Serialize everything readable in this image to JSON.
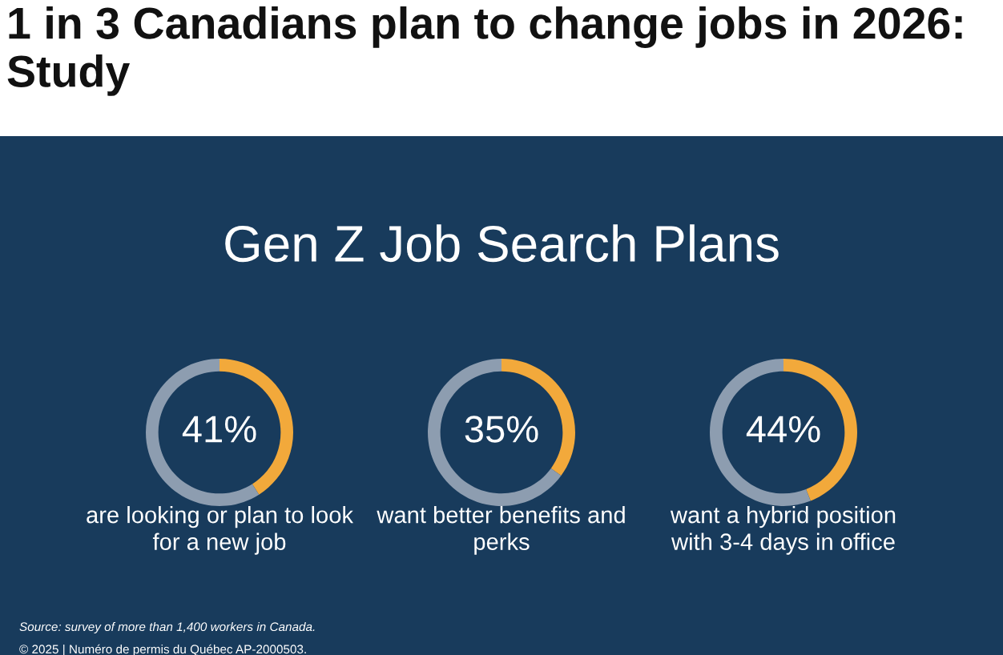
{
  "chart_data": [
    {
      "type": "donut",
      "title": "1 in 3 Canadians plan to change jobs in 2026: Study",
      "subtitle": "Gen Z Job Search Plans",
      "categories": [
        null,
        null
      ],
      "values": [
        41,
        59
      ],
      "colors": [
        "#f2a93b",
        "#8d9db0"
      ],
      "value_labels": [
        "41%",
        null
      ],
      "xlabel": "are looking or plan to look\nfor a new job"
    },
    {
      "type": "donut",
      "categories": [
        null,
        null
      ],
      "values": [
        35,
        65
      ],
      "colors": [
        "#f2a93b",
        "#8d9db0"
      ],
      "value_labels": [
        "35%",
        null
      ],
      "xlabel": "want better benefits and\nperks"
    },
    {
      "type": "donut",
      "categories": [
        null,
        null
      ],
      "values": [
        44,
        56
      ],
      "colors": [
        "#f2a93b",
        "#8d9db0"
      ],
      "value_labels": [
        "44%",
        null
      ],
      "xlabel": "want a hybrid position\nwith 3-4 days in office",
      "annotations": [
        "Source: survey of more than 1,400 workers in Canada.",
        "© 2025 | Numéro de permis du Québec AP-2000503."
      ]
    }
  ]
}
